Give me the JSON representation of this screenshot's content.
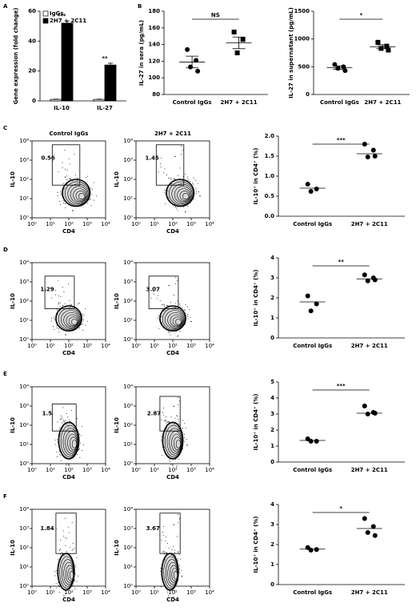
{
  "chart_data": [
    {
      "type": "bar",
      "panel": "A",
      "ylabel": "Gene expression (fold change)",
      "categories": [
        "IL-10",
        "IL-27"
      ],
      "series": [
        {
          "name": "IgGs",
          "color": "#ffffff",
          "values": [
            1,
            1
          ],
          "errors": [
            0.2,
            0.2
          ]
        },
        {
          "name": "2H7 + 2C11",
          "color": "#000000",
          "values": [
            52,
            24
          ],
          "errors": [
            1.5,
            1.2
          ]
        }
      ],
      "ylim": [
        0,
        60
      ],
      "yticks": [
        0,
        20,
        40,
        60
      ],
      "significance": [
        "***",
        "**"
      ],
      "legend": "top-left"
    },
    {
      "type": "dot",
      "panel": "B",
      "ylabel": "IL-27 in sera (pg/mL)",
      "groups": [
        {
          "name": "Control IgGs",
          "values": [
            134,
            121,
            113,
            108
          ],
          "mean": 119,
          "error": 7,
          "marker": "circle"
        },
        {
          "name": "2H7 + 2C11",
          "values": [
            155,
            146,
            130
          ],
          "mean": 142,
          "error": 7,
          "marker": "square"
        }
      ],
      "ylim": [
        80,
        180
      ],
      "yticks": [
        80,
        100,
        120,
        140,
        160,
        180
      ],
      "significance": "NS"
    },
    {
      "type": "dot",
      "ylabel": "IL-27 in supernatant (pg/mL)",
      "groups": [
        {
          "name": "Control IgGs",
          "values": [
            540,
            500,
            470,
            430
          ],
          "mean": 485,
          "error": 30,
          "marker": "circle"
        },
        {
          "name": "2H7 + 2C11",
          "values": [
            940,
            870,
            830,
            800
          ],
          "mean": 860,
          "error": 35,
          "marker": "square"
        }
      ],
      "ylim": [
        0,
        1500
      ],
      "yticks": [
        0,
        500,
        1000,
        1500
      ],
      "significance": "*"
    },
    {
      "type": "flow",
      "panel": "C",
      "title": "Control IgGs",
      "xlabel": "CD4",
      "ylabel": "IL-10",
      "gate_percent": 0.56,
      "log": true,
      "xlim": [
        1,
        10000
      ],
      "ylim": [
        1,
        10000
      ],
      "xticks": [
        {
          "value": 1,
          "label": "10⁰"
        },
        {
          "value": 10,
          "label": "10¹"
        },
        {
          "value": 100,
          "label": "10²"
        },
        {
          "value": 1000,
          "label": "10³"
        },
        {
          "value": 10000,
          "label": "10⁴"
        }
      ],
      "yticks": [
        {
          "value": 1,
          "label": "10⁰"
        },
        {
          "value": 10,
          "label": "10¹"
        },
        {
          "value": 100,
          "label": "10²"
        },
        {
          "value": 1000,
          "label": "10³"
        },
        {
          "value": 10000,
          "label": "10⁴"
        }
      ]
    },
    {
      "type": "flow",
      "title": "2H7 + 2C11",
      "xlabel": "CD4",
      "ylabel": "IL-10",
      "gate_percent": 1.45,
      "log": true,
      "xlim": [
        1,
        10000
      ],
      "ylim": [
        1,
        10000
      ],
      "xticks": [
        {
          "value": 1,
          "label": "10⁰"
        },
        {
          "value": 10,
          "label": "10¹"
        },
        {
          "value": 100,
          "label": "10²"
        },
        {
          "value": 1000,
          "label": "10³"
        },
        {
          "value": 10000,
          "label": "10⁴"
        }
      ],
      "yticks": [
        {
          "value": 1,
          "label": "10⁰"
        },
        {
          "value": 10,
          "label": "10¹"
        },
        {
          "value": 100,
          "label": "10²"
        },
        {
          "value": 1000,
          "label": "10³"
        },
        {
          "value": 10000,
          "label": "10⁴"
        }
      ]
    },
    {
      "type": "dot",
      "ylabel": "IL-10⁺ in CD4⁺ (%)",
      "groups": [
        {
          "name": "Control IgGs",
          "values": [
            0.8,
            0.68,
            0.62
          ],
          "mean": 0.7
        },
        {
          "name": "2H7 + 2C11",
          "values": [
            1.8,
            1.65,
            1.48,
            1.5
          ],
          "mean": 1.56
        }
      ],
      "ylim": [
        0,
        2
      ],
      "yticks": [
        {
          "value": 0,
          "label": "0.0"
        },
        0.5,
        {
          "value": 1,
          "label": "1.0"
        },
        1.5,
        {
          "value": 2,
          "label": "2.0"
        }
      ],
      "significance": "***"
    },
    {
      "type": "flow",
      "panel": "D",
      "xlabel": "CD4",
      "ylabel": "IL-10",
      "gate_percent": 1.29,
      "log": true,
      "xlim": [
        1,
        10000
      ],
      "ylim": [
        1,
        10000
      ],
      "xticks": [
        {
          "value": 1,
          "label": "10⁰"
        },
        {
          "value": 10,
          "label": "10¹"
        },
        {
          "value": 100,
          "label": "10²"
        },
        {
          "value": 1000,
          "label": "10³"
        },
        {
          "value": 10000,
          "label": "10⁴"
        }
      ],
      "yticks": [
        {
          "value": 1,
          "label": "10⁰"
        },
        {
          "value": 10,
          "label": "10¹"
        },
        {
          "value": 100,
          "label": "10²"
        },
        {
          "value": 1000,
          "label": "10³"
        },
        {
          "value": 10000,
          "label": "10⁴"
        }
      ]
    },
    {
      "type": "flow",
      "xlabel": "CD4",
      "ylabel": "IL-10",
      "gate_percent": 3.07,
      "log": true,
      "xlim": [
        1,
        10000
      ],
      "ylim": [
        1,
        10000
      ],
      "xticks": [
        {
          "value": 1,
          "label": "10⁰"
        },
        {
          "value": 10,
          "label": "10¹"
        },
        {
          "value": 100,
          "label": "10²"
        },
        {
          "value": 1000,
          "label": "10³"
        },
        {
          "value": 10000,
          "label": "10⁴"
        }
      ],
      "yticks": [
        {
          "value": 1,
          "label": "10⁰"
        },
        {
          "value": 10,
          "label": "10¹"
        },
        {
          "value": 100,
          "label": "10²"
        },
        {
          "value": 1000,
          "label": "10³"
        },
        {
          "value": 10000,
          "label": "10⁴"
        }
      ]
    },
    {
      "type": "dot",
      "ylabel": "IL-10⁺ in CD4⁺ (%)",
      "groups": [
        {
          "name": "Control IgGs",
          "values": [
            2.1,
            1.7,
            1.35
          ],
          "mean": 1.8
        },
        {
          "name": "2H7 + 2C11",
          "values": [
            3.15,
            3.0,
            2.85,
            2.9
          ],
          "mean": 2.95
        }
      ],
      "ylim": [
        0,
        4
      ],
      "yticks": [
        0,
        1,
        2,
        3,
        4
      ],
      "significance": "**"
    },
    {
      "type": "flow",
      "panel": "E",
      "xlabel": "CD4",
      "ylabel": "IL-10",
      "gate_percent": 1.5,
      "log": true,
      "xlim": [
        1,
        10000
      ],
      "ylim": [
        1,
        10000
      ],
      "xticks": [
        {
          "value": 1,
          "label": "10⁰"
        },
        {
          "value": 10,
          "label": "10¹"
        },
        {
          "value": 100,
          "label": "10²"
        },
        {
          "value": 1000,
          "label": "10³"
        },
        {
          "value": 10000,
          "label": "10⁴"
        }
      ],
      "yticks": [
        {
          "value": 1,
          "label": "10⁰"
        },
        {
          "value": 10,
          "label": "10¹"
        },
        {
          "value": 100,
          "label": "10²"
        },
        {
          "value": 1000,
          "label": "10³"
        },
        {
          "value": 10000,
          "label": "10⁴"
        }
      ]
    },
    {
      "type": "flow",
      "xlabel": "CD4",
      "ylabel": "IL-10",
      "gate_percent": 2.87,
      "log": true,
      "xlim": [
        1,
        10000
      ],
      "ylim": [
        1,
        10000
      ],
      "xticks": [
        {
          "value": 1,
          "label": "10⁰"
        },
        {
          "value": 10,
          "label": "10¹"
        },
        {
          "value": 100,
          "label": "10²"
        },
        {
          "value": 1000,
          "label": "10³"
        },
        {
          "value": 10000,
          "label": "10⁴"
        }
      ],
      "yticks": [
        {
          "value": 1,
          "label": "10⁰"
        },
        {
          "value": 10,
          "label": "10¹"
        },
        {
          "value": 100,
          "label": "10²"
        },
        {
          "value": 1000,
          "label": "10³"
        },
        {
          "value": 10000,
          "label": "10⁴"
        }
      ]
    },
    {
      "type": "dot",
      "ylabel": "IL-10⁺ in CD4⁺ (%)",
      "groups": [
        {
          "name": "Control IgGs",
          "values": [
            1.45,
            1.3,
            1.3
          ],
          "mean": 1.35
        },
        {
          "name": "2H7 + 2C11",
          "values": [
            3.5,
            3.1,
            3.0,
            3.05
          ],
          "mean": 3.05
        }
      ],
      "ylim": [
        0,
        5
      ],
      "yticks": [
        0,
        1,
        2,
        3,
        4,
        5
      ],
      "significance": "***"
    },
    {
      "type": "flow",
      "panel": "F",
      "xlabel": "CD4",
      "ylabel": "IL-10",
      "gate_percent": 1.84,
      "log": true,
      "xlim": [
        1,
        10000
      ],
      "ylim": [
        1,
        10000
      ],
      "xticks": [
        {
          "value": 1,
          "label": "10⁰"
        },
        {
          "value": 10,
          "label": "10¹"
        },
        {
          "value": 100,
          "label": "10²"
        },
        {
          "value": 1000,
          "label": "10³"
        },
        {
          "value": 10000,
          "label": "10⁴"
        }
      ],
      "yticks": [
        {
          "value": 1,
          "label": "10⁰"
        },
        {
          "value": 10,
          "label": "10¹"
        },
        {
          "value": 100,
          "label": "10²"
        },
        {
          "value": 1000,
          "label": "10³"
        },
        {
          "value": 10000,
          "label": "10⁴"
        }
      ]
    },
    {
      "type": "flow",
      "xlabel": "CD4",
      "ylabel": "IL-10",
      "gate_percent": 3.67,
      "log": true,
      "xlim": [
        1,
        10000
      ],
      "ylim": [
        1,
        10000
      ],
      "xticks": [
        {
          "value": 1,
          "label": "10⁰"
        },
        {
          "value": 10,
          "label": "10¹"
        },
        {
          "value": 100,
          "label": "10²"
        },
        {
          "value": 1000,
          "label": "10³"
        },
        {
          "value": 10000,
          "label": "10⁴"
        }
      ],
      "yticks": [
        {
          "value": 1,
          "label": "10⁰"
        },
        {
          "value": 10,
          "label": "10¹"
        },
        {
          "value": 100,
          "label": "10²"
        },
        {
          "value": 1000,
          "label": "10³"
        },
        {
          "value": 10000,
          "label": "10⁴"
        }
      ]
    },
    {
      "type": "dot",
      "ylabel": "IL-10⁺ in CD4⁺ (%)",
      "groups": [
        {
          "name": "Control IgGs",
          "values": [
            1.85,
            1.75,
            1.72
          ],
          "mean": 1.77
        },
        {
          "name": "2H7 + 2C11",
          "values": [
            3.3,
            2.9,
            2.6,
            2.45
          ],
          "mean": 2.8
        }
      ],
      "ylim": [
        0,
        4
      ],
      "yticks": [
        0,
        1,
        2,
        3,
        4
      ],
      "significance": "*"
    }
  ]
}
